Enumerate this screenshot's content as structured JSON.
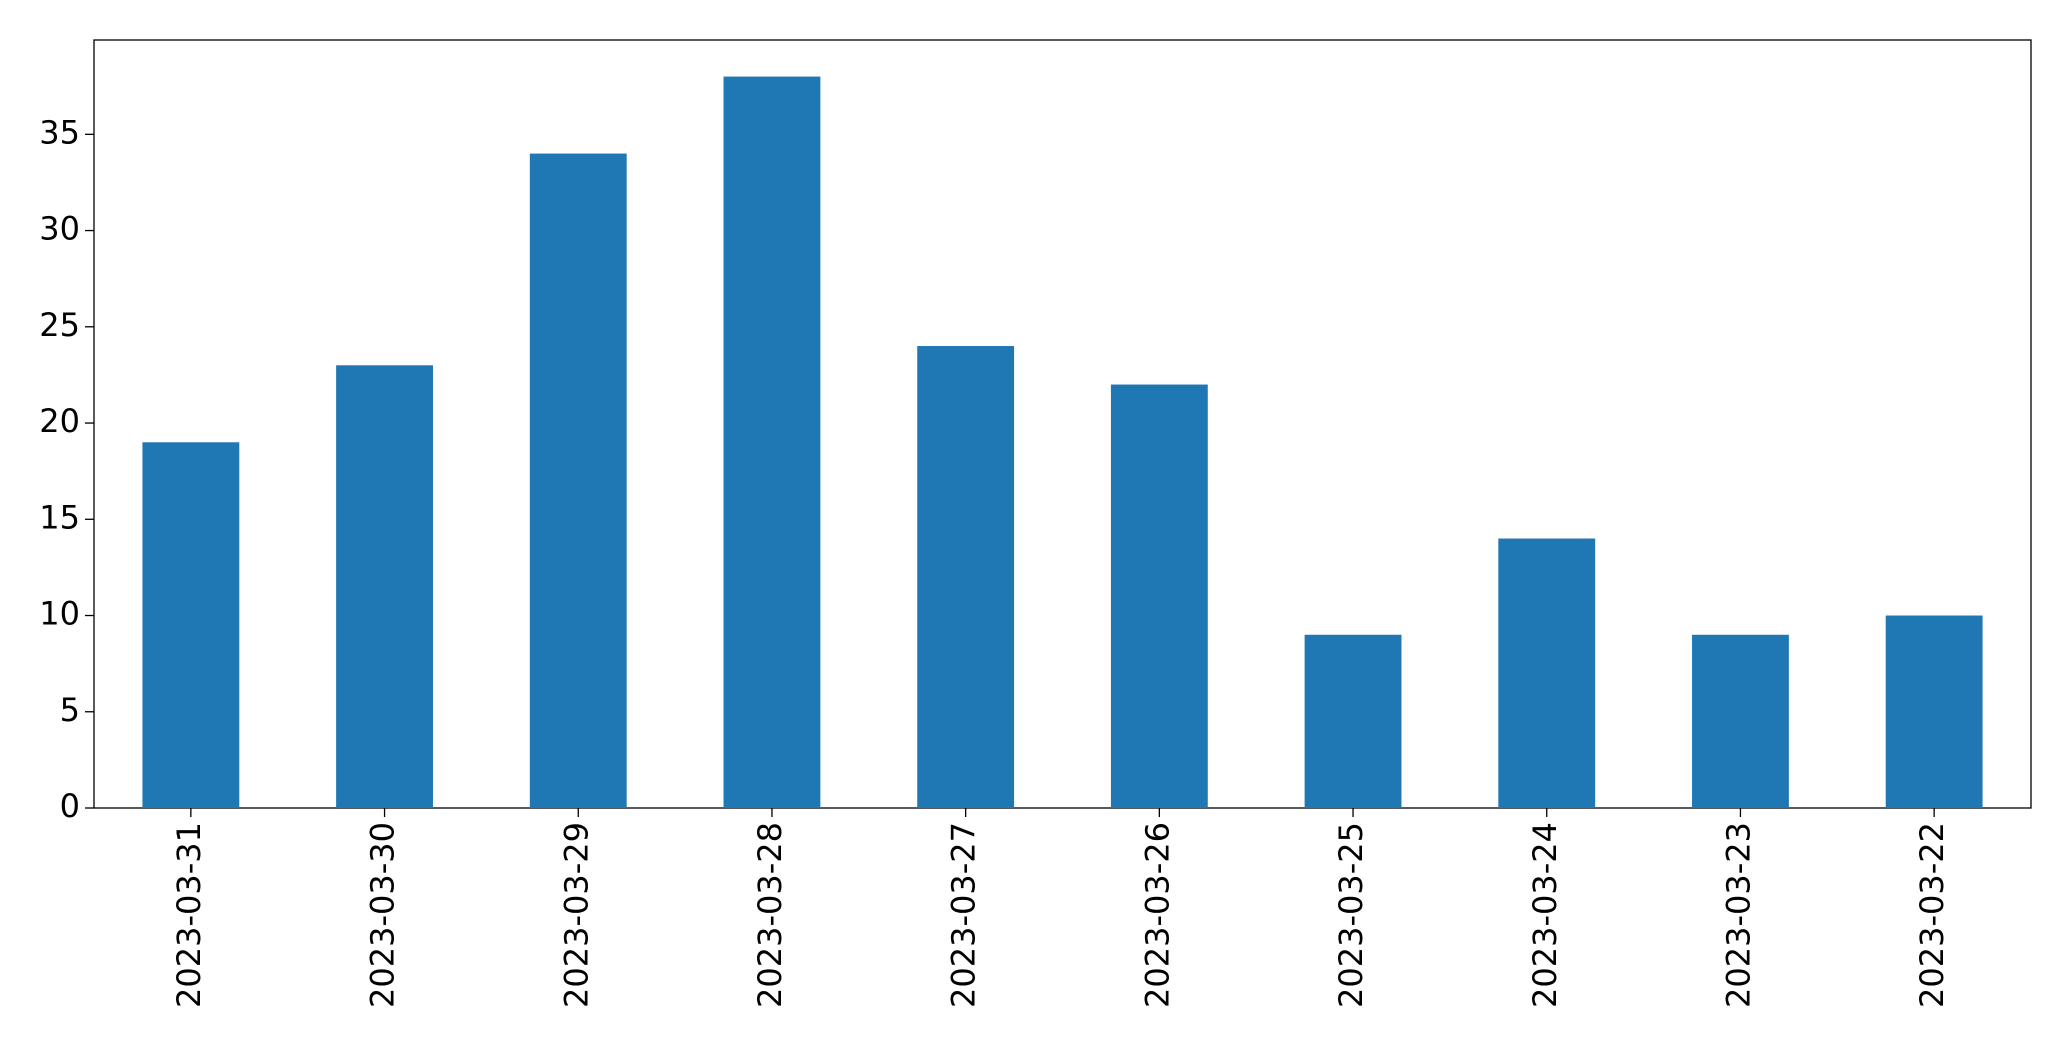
{
  "chart_data": {
    "type": "bar",
    "categories": [
      "2023-03-31",
      "2023-03-30",
      "2023-03-29",
      "2023-03-28",
      "2023-03-27",
      "2023-03-26",
      "2023-03-25",
      "2023-03-24",
      "2023-03-23",
      "2023-03-22"
    ],
    "values": [
      19,
      23,
      34,
      38,
      24,
      22,
      9,
      14,
      9,
      10
    ],
    "color": "#1f77b4",
    "ylim": [
      0,
      39.9
    ],
    "yticks": [
      0,
      5,
      10,
      15,
      20,
      25,
      30,
      35
    ],
    "grid": false
  }
}
